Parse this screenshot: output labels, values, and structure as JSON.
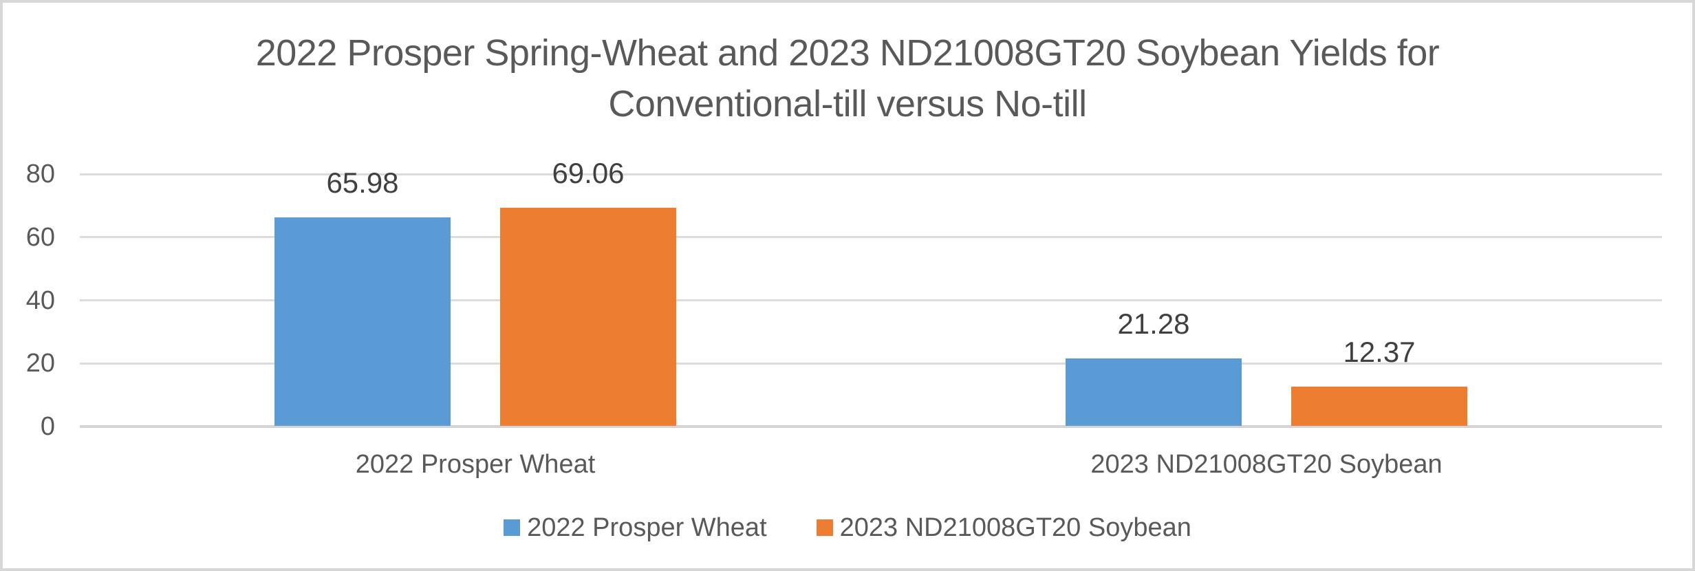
{
  "title": {
    "line1": "2022 Prosper Spring-Wheat and 2023 ND21008GT20 Soybean Yields for",
    "line2": "Conventional-till versus No-till"
  },
  "colors": {
    "series1": "#5B9BD5",
    "series2": "#ED7D31",
    "gridline": "#DBDBDB",
    "axis_line": "#D4D4D4",
    "border": "#D7D7D7",
    "title_text": "#595959",
    "axis_text": "#595959",
    "data_label_text": "#404040",
    "background": "#FFFFFF"
  },
  "legend": {
    "position": "bottom",
    "items": [
      {
        "label": "2022 Prosper Wheat",
        "color": "#5B9BD5"
      },
      {
        "label": "2023 ND21008GT20 Soybean",
        "color": "#ED7D31"
      }
    ]
  },
  "chart_data": {
    "type": "bar",
    "title": "2022 Prosper Spring-Wheat and 2023 ND21008GT20 Soybean Yields for Conventional-till versus No-till",
    "categories": [
      "2022 Prosper Wheat",
      "2023 ND21008GT20 Soybean"
    ],
    "series": [
      {
        "name": "2022 Prosper Wheat",
        "color": "#5B9BD5",
        "values": [
          65.98,
          21.28
        ]
      },
      {
        "name": "2023 ND21008GT20 Soybean",
        "color": "#ED7D31",
        "values": [
          69.06,
          12.37
        ]
      }
    ],
    "data_labels": [
      [
        "65.98",
        "21.28"
      ],
      [
        "69.06",
        "12.37"
      ]
    ],
    "xlabel": "",
    "ylabel": "",
    "yticks": [
      0,
      20,
      40,
      60,
      80
    ],
    "ylim": [
      0,
      80
    ],
    "grid": true,
    "legend_position": "bottom"
  }
}
